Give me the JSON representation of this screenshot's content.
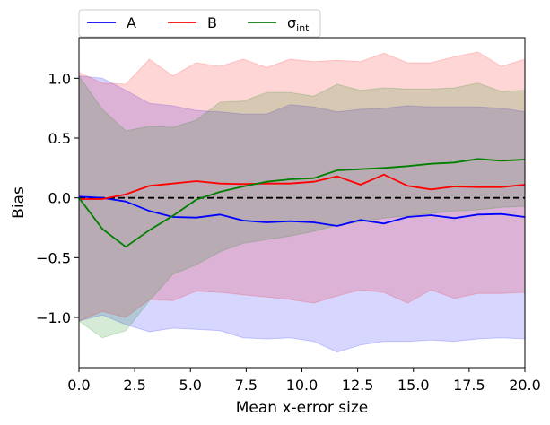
{
  "chart_data": {
    "type": "line",
    "title": "",
    "xlabel": "Mean x-error size",
    "ylabel": "Bias",
    "xlim": [
      0,
      20
    ],
    "ylim": [
      -1.42,
      1.34
    ],
    "xticks": [
      0,
      2.5,
      5,
      7.5,
      10,
      12.5,
      15,
      17.5,
      20
    ],
    "xtick_labels": [
      "0.0",
      "2.5",
      "5.0",
      "7.5",
      "10.0",
      "12.5",
      "15.0",
      "17.5",
      "20.0"
    ],
    "yticks": [
      -1.0,
      -0.5,
      0.0,
      0.5,
      1.0
    ],
    "ytick_labels": [
      "−1.0",
      "−0.5",
      "0.0",
      "0.5",
      "1.0"
    ],
    "legend_position": "top-left, above axes, 3 columns",
    "reference_line": {
      "y": 0,
      "style": "dashed",
      "color": "#000000"
    },
    "x": [
      0,
      1.05,
      2.1,
      3.16,
      4.21,
      5.26,
      6.32,
      7.37,
      8.42,
      9.47,
      10.53,
      11.58,
      12.63,
      13.68,
      14.74,
      15.79,
      16.84,
      17.89,
      18.95,
      20.0
    ],
    "series": [
      {
        "name": "A",
        "label_main": "A",
        "label_sub": "",
        "color": "#0000ff",
        "values": [
          0.01,
          0.0,
          -0.03,
          -0.11,
          -0.16,
          -0.165,
          -0.14,
          -0.19,
          -0.205,
          -0.195,
          -0.205,
          -0.235,
          -0.185,
          -0.215,
          -0.16,
          -0.145,
          -0.17,
          -0.14,
          -0.135,
          -0.16
        ],
        "upper": [
          1.02,
          1.0,
          0.9,
          0.79,
          0.77,
          0.73,
          0.72,
          0.7,
          0.7,
          0.78,
          0.76,
          0.72,
          0.74,
          0.75,
          0.77,
          0.76,
          0.76,
          0.76,
          0.75,
          0.72
        ],
        "lower": [
          -1.03,
          -0.98,
          -1.06,
          -1.12,
          -1.09,
          -1.1,
          -1.11,
          -1.17,
          -1.18,
          -1.17,
          -1.2,
          -1.29,
          -1.23,
          -1.2,
          -1.2,
          -1.19,
          -1.2,
          -1.18,
          -1.17,
          -1.18
        ]
      },
      {
        "name": "B",
        "label_main": "B",
        "label_sub": "",
        "color": "#ff0000",
        "values": [
          -0.01,
          -0.01,
          0.03,
          0.1,
          0.12,
          0.14,
          0.12,
          0.115,
          0.12,
          0.12,
          0.135,
          0.18,
          0.11,
          0.195,
          0.1,
          0.07,
          0.095,
          0.09,
          0.09,
          0.11
        ],
        "upper": [
          1.05,
          0.96,
          0.95,
          1.16,
          1.02,
          1.13,
          1.1,
          1.16,
          1.09,
          1.16,
          1.14,
          1.15,
          1.14,
          1.21,
          1.13,
          1.13,
          1.18,
          1.22,
          1.1,
          1.16
        ],
        "lower": [
          -1.03,
          -0.95,
          -1.0,
          -0.85,
          -0.86,
          -0.78,
          -0.79,
          -0.81,
          -0.83,
          -0.85,
          -0.88,
          -0.82,
          -0.77,
          -0.79,
          -0.88,
          -0.77,
          -0.84,
          -0.8,
          -0.8,
          -0.79
        ]
      },
      {
        "name": "σint",
        "label_main": "σ",
        "label_sub": "int",
        "color": "#008000",
        "values": [
          0.0,
          -0.26,
          -0.41,
          -0.27,
          -0.15,
          -0.015,
          0.05,
          0.095,
          0.135,
          0.155,
          0.165,
          0.23,
          0.24,
          0.25,
          0.265,
          0.285,
          0.295,
          0.325,
          0.31,
          0.32
        ],
        "upper": [
          1.02,
          0.74,
          0.56,
          0.6,
          0.59,
          0.65,
          0.8,
          0.81,
          0.88,
          0.88,
          0.85,
          0.95,
          0.9,
          0.92,
          0.91,
          0.91,
          0.92,
          0.96,
          0.89,
          0.9
        ],
        "lower": [
          -1.03,
          -1.17,
          -1.11,
          -0.86,
          -0.64,
          -0.56,
          -0.45,
          -0.38,
          -0.35,
          -0.32,
          -0.28,
          -0.23,
          -0.2,
          -0.17,
          -0.15,
          -0.13,
          -0.11,
          -0.1,
          -0.08,
          -0.07
        ]
      }
    ]
  }
}
